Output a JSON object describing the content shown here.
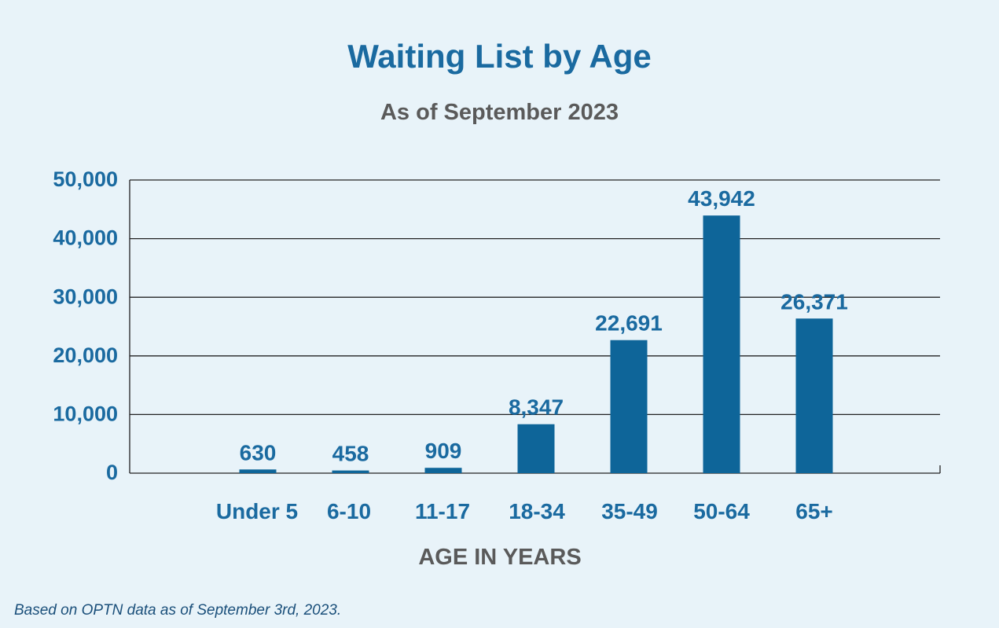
{
  "chart_data": {
    "type": "bar",
    "title": "Waiting List by Age",
    "subtitle": "As of September 2023",
    "xlabel": "AGE IN YEARS",
    "ylabel": "",
    "categories": [
      "Under 5",
      "6-10",
      "11-17",
      "18-34",
      "35-49",
      "50-64",
      "65+"
    ],
    "values": [
      630,
      458,
      909,
      8347,
      22691,
      43942,
      26371
    ],
    "value_labels": [
      "630",
      "458",
      "909",
      "8,347",
      "22,691",
      "43,942",
      "26,371"
    ],
    "ylim": [
      0,
      50000
    ],
    "yticks": [
      0,
      10000,
      20000,
      30000,
      40000,
      50000
    ],
    "ytick_labels": [
      "0",
      "10,000",
      "20,000",
      "30,000",
      "40,000",
      "50,000"
    ],
    "grid": true,
    "bar_color": "#0e6599"
  },
  "footnote": "Based on OPTN data as of September 3rd, 2023."
}
